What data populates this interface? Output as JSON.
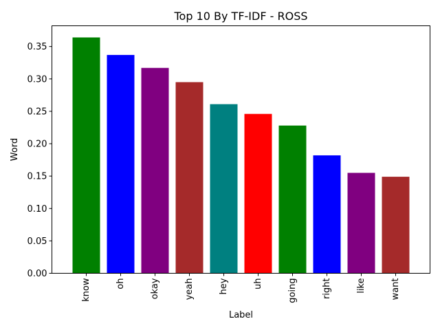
{
  "chart_data": {
    "type": "bar",
    "title": "Top 10 By TF-IDF - ROSS",
    "xlabel": "Label",
    "ylabel": "Word",
    "categories": [
      "know",
      "oh",
      "okay",
      "yeah",
      "hey",
      "uh",
      "going",
      "right",
      "like",
      "want"
    ],
    "values": [
      0.364,
      0.337,
      0.317,
      0.295,
      0.261,
      0.246,
      0.228,
      0.182,
      0.155,
      0.149
    ],
    "colors": [
      "#008000",
      "#0000ff",
      "#800080",
      "#a52a2a",
      "#008080",
      "#ff0000",
      "#008000",
      "#0000ff",
      "#800080",
      "#a52a2a"
    ],
    "ylim": [
      0,
      0.382
    ],
    "yticks": [
      "0.00",
      "0.05",
      "0.10",
      "0.15",
      "0.20",
      "0.25",
      "0.30",
      "0.35"
    ],
    "grid": false,
    "legend": "none"
  }
}
